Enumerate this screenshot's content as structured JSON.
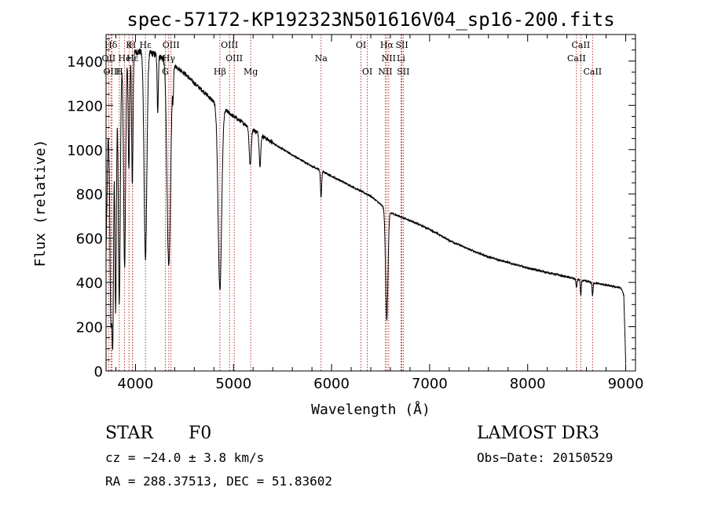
{
  "chart_data": {
    "type": "line",
    "title": "spec-57172-KP192323N501616V04_sp16-200.fits",
    "xlabel": "Wavelength (Å)",
    "ylabel": "Flux (relative)",
    "xlim": [
      3700,
      9100
    ],
    "ylim": [
      0,
      1520
    ],
    "xticks": [
      4000,
      5000,
      6000,
      7000,
      8000,
      9000
    ],
    "yticks": [
      0,
      200,
      400,
      600,
      800,
      1000,
      1200,
      1400
    ],
    "continuum": [
      [
        3700,
        520
      ],
      [
        3720,
        1050
      ],
      [
        3760,
        1240
      ],
      [
        3800,
        1330
      ],
      [
        3850,
        1380
      ],
      [
        3900,
        1410
      ],
      [
        3950,
        1430
      ],
      [
        4000,
        1440
      ],
      [
        4100,
        1445
      ],
      [
        4200,
        1430
      ],
      [
        4300,
        1410
      ],
      [
        4400,
        1380
      ],
      [
        4500,
        1345
      ],
      [
        4600,
        1300
      ],
      [
        4700,
        1260
      ],
      [
        4800,
        1215
      ],
      [
        4900,
        1185
      ],
      [
        5000,
        1150
      ],
      [
        5100,
        1120
      ],
      [
        5200,
        1090
      ],
      [
        5400,
        1030
      ],
      [
        5600,
        975
      ],
      [
        5800,
        925
      ],
      [
        6000,
        880
      ],
      [
        6200,
        835
      ],
      [
        6400,
        790
      ],
      [
        6600,
        715
      ],
      [
        6800,
        680
      ],
      [
        7000,
        640
      ],
      [
        7200,
        590
      ],
      [
        7400,
        550
      ],
      [
        7600,
        515
      ],
      [
        7800,
        490
      ],
      [
        8000,
        465
      ],
      [
        8200,
        445
      ],
      [
        8400,
        425
      ],
      [
        8600,
        405
      ],
      [
        8800,
        388
      ],
      [
        8950,
        375
      ],
      [
        8980,
        345
      ],
      [
        8995,
        120
      ],
      [
        9000,
        30
      ]
    ],
    "absorption": [
      [
        3750,
        950,
        10
      ],
      [
        3770,
        1000,
        8
      ],
      [
        3798,
        1050,
        8
      ],
      [
        3835,
        1060,
        10
      ],
      [
        3889,
        940,
        10
      ],
      [
        3933,
        520,
        7
      ],
      [
        3968,
        590,
        7
      ],
      [
        4102,
        940,
        14
      ],
      [
        4227,
        250,
        6
      ],
      [
        4340,
        930,
        18
      ],
      [
        4384,
        120,
        5
      ],
      [
        4861,
        830,
        18
      ],
      [
        5170,
        170,
        10
      ],
      [
        5270,
        140,
        8
      ],
      [
        5893,
        120,
        6
      ],
      [
        6563,
        500,
        12
      ],
      [
        8498,
        40,
        5
      ],
      [
        8542,
        70,
        5
      ],
      [
        8662,
        60,
        5
      ]
    ],
    "noise": 14,
    "spectral_lines": [
      {
        "label": "Hδ",
        "wave": 3750,
        "row": 0
      },
      {
        "label": "K",
        "wave": 3934,
        "row": 0
      },
      {
        "label": "H",
        "wave": 3969,
        "row": 0
      },
      {
        "label": "Hε",
        "wave": 4102,
        "row": 0
      },
      {
        "label": "OIII",
        "wave": 4363,
        "row": 0
      },
      {
        "label": "OIII",
        "wave": 4959,
        "row": 0
      },
      {
        "label": "OI",
        "wave": 6300,
        "row": 0
      },
      {
        "label": "Hα",
        "wave": 6563,
        "row": 0
      },
      {
        "label": "SII",
        "wave": 6717,
        "row": 0
      },
      {
        "label": "CaII",
        "wave": 8542,
        "row": 0
      },
      {
        "label": "OII",
        "wave": 3727,
        "row": 1
      },
      {
        "label": "He",
        "wave": 3889,
        "row": 1
      },
      {
        "label": "Hε",
        "wave": 3970,
        "row": 1
      },
      {
        "label": "Hγ",
        "wave": 4340,
        "row": 1
      },
      {
        "label": "OIII",
        "wave": 5007,
        "row": 1
      },
      {
        "label": "Na",
        "wave": 5893,
        "row": 1
      },
      {
        "label": "NII",
        "wave": 6583,
        "row": 1
      },
      {
        "label": "Li",
        "wave": 6708,
        "row": 1
      },
      {
        "label": "CaII",
        "wave": 8498,
        "row": 1
      },
      {
        "label": "OIII",
        "wave": 3760,
        "row": 2
      },
      {
        "label": "H",
        "wave": 3835,
        "row": 2
      },
      {
        "label": "G",
        "wave": 4305,
        "row": 2
      },
      {
        "label": "Hβ",
        "wave": 4861,
        "row": 2
      },
      {
        "label": "Mg",
        "wave": 5175,
        "row": 2
      },
      {
        "label": "OI",
        "wave": 6364,
        "row": 2
      },
      {
        "label": "NII",
        "wave": 6548,
        "row": 2
      },
      {
        "label": "SII",
        "wave": 6731,
        "row": 2
      },
      {
        "label": "CaII",
        "wave": 8662,
        "row": 2
      }
    ]
  },
  "info": {
    "object_class": "STAR",
    "subclass": "F0",
    "survey": "LAMOST DR3",
    "cz": "cz = −24.0 ± 3.8 km/s",
    "obs_date": "Obs−Date: 20150529",
    "coords": "RA = 288.37513, DEC =  51.83602"
  },
  "colors": {
    "line": "#000000",
    "marker": "#b22222",
    "axis": "#000000"
  }
}
